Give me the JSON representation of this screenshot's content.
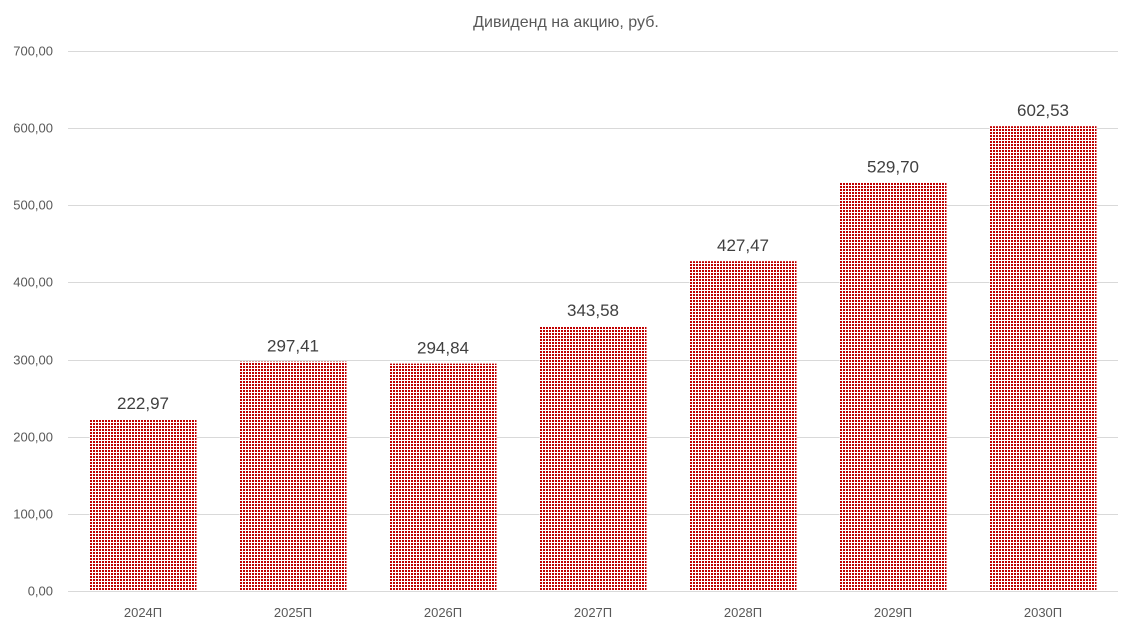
{
  "chart_data": {
    "type": "bar",
    "title": "Дивиденд на акцию, руб.",
    "categories": [
      "2024П",
      "2025П",
      "2026П",
      "2027П",
      "2028П",
      "2029П",
      "2030П"
    ],
    "values": [
      222.97,
      297.41,
      294.84,
      343.58,
      427.47,
      529.7,
      602.53
    ],
    "data_labels": [
      "222,97",
      "297,41",
      "294,84",
      "343,58",
      "427,47",
      "529,70",
      "602,53"
    ],
    "y_ticks": [
      "0,00",
      "100,00",
      "200,00",
      "300,00",
      "400,00",
      "500,00",
      "600,00",
      "700,00"
    ],
    "ylim": [
      0,
      700
    ],
    "grid": true,
    "legend": "none",
    "bar_color": "#c00000",
    "bar_fill_background": "#ffffff"
  }
}
